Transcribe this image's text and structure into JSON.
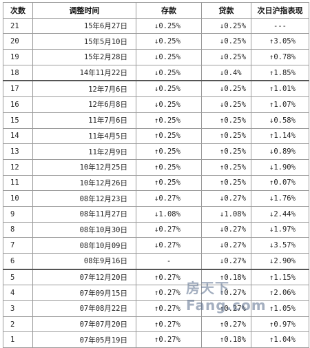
{
  "headers": [
    "次数",
    "调整时间",
    "存款",
    "贷款",
    "次日沪指表现"
  ],
  "rows": [
    {
      "n": "21",
      "date": "15年6月27日",
      "dep": "↓0.25%",
      "loan": "↓0.25%",
      "idx": "---"
    },
    {
      "n": "20",
      "date": "15年5月10日",
      "dep": "↓0.25%",
      "loan": "↓0.25%",
      "idx": "↑3.05%"
    },
    {
      "n": "19",
      "date": "15年2月28日",
      "dep": "↓0.25%",
      "loan": "↓0.25%",
      "idx": "↑0.78%"
    },
    {
      "n": "18",
      "date": "14年11月22日",
      "dep": "↓0.25%",
      "loan": "↓0.4%",
      "idx": "↑1.85%"
    },
    {
      "n": "17",
      "date": "12年7月6日",
      "dep": "↓0.25%",
      "loan": "↓0.25%",
      "idx": "↑1.01%"
    },
    {
      "n": "16",
      "date": "12年6月8日",
      "dep": "↓0.25%",
      "loan": "↓0.25%",
      "idx": "↑1.07%"
    },
    {
      "n": "15",
      "date": "11年7月6日",
      "dep": "↑0.25%",
      "loan": "↑0.25%",
      "idx": "↓0.58%"
    },
    {
      "n": "14",
      "date": "11年4月5日",
      "dep": "↑0.25%",
      "loan": "↑0.25%",
      "idx": "↑1.14%"
    },
    {
      "n": "13",
      "date": "11年2月9日",
      "dep": "↑0.25%",
      "loan": "↑0.25%",
      "idx": "↓0.89%"
    },
    {
      "n": "12",
      "date": "10年12月25日",
      "dep": "↑0.25%",
      "loan": "↑0.25%",
      "idx": "↓1.90%"
    },
    {
      "n": "11",
      "date": "10年12月26日",
      "dep": "↑0.25%",
      "loan": "↑0.25%",
      "idx": "↑0.07%"
    },
    {
      "n": "10",
      "date": "08年12月23日",
      "dep": "↓0.27%",
      "loan": "↓0.27%",
      "idx": "↓1.76%"
    },
    {
      "n": "9",
      "date": "08年11月27日",
      "dep": "↓1.08%",
      "loan": "↓1.08%",
      "idx": "↓2.44%"
    },
    {
      "n": "8",
      "date": "08年10月30日",
      "dep": "↓0.27%",
      "loan": "↓0.27%",
      "idx": "↓1.97%"
    },
    {
      "n": "7",
      "date": "08年10月09日",
      "dep": "↓0.27%",
      "loan": "↓0.27%",
      "idx": "↓3.57%"
    },
    {
      "n": "6",
      "date": "08年9月16日",
      "dep": "-",
      "loan": "↓0.27%",
      "idx": "↓2.90%"
    },
    {
      "n": "5",
      "date": "07年12月20日",
      "dep": "↑0.27%",
      "loan": "↑0.18%",
      "idx": "↑1.15%"
    },
    {
      "n": "4",
      "date": "07年09月15日",
      "dep": "↑0.27%",
      "loan": "↑0.27%",
      "idx": "↑2.06%"
    },
    {
      "n": "3",
      "date": "07年08月22日",
      "dep": "↑0.27%",
      "loan": "↑0.27%",
      "idx": "↑1.05%"
    },
    {
      "n": "2",
      "date": "07年07月20日",
      "dep": "↑0.27%",
      "loan": "↑0.27%",
      "idx": "↑0.97%"
    },
    {
      "n": "1",
      "date": "07年05月19日",
      "dep": "↑0.27%",
      "loan": "↑0.18%",
      "idx": "↑1.04%"
    }
  ],
  "thick_after": [
    "18",
    "6"
  ],
  "watermark": "房天下 Fang.com"
}
